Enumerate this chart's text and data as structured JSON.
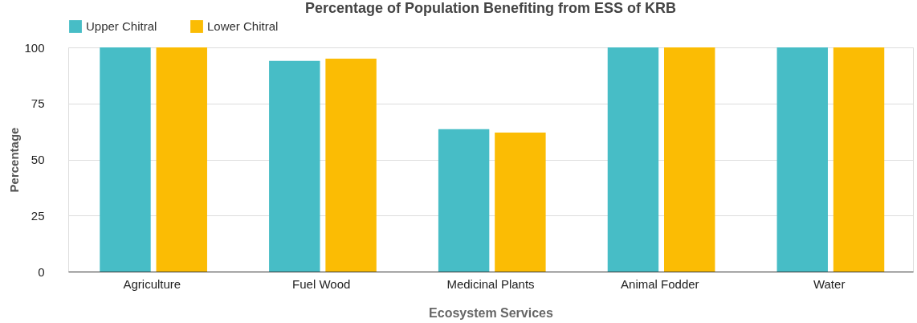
{
  "chart_data": {
    "type": "bar",
    "title": "Percentage of Population Benefiting from ESS of KRB",
    "xlabel": "Ecosystem Services",
    "ylabel": "Percentage",
    "categories": [
      "Agriculture",
      "Fuel Wood",
      "Medicinal Plants",
      "Animal Fodder",
      "Water"
    ],
    "series": [
      {
        "name": "Upper Chitral",
        "color": "#47bdc6",
        "values": [
          100,
          94,
          63.5,
          100,
          100
        ]
      },
      {
        "name": "Lower Chitral",
        "color": "#fbbc04",
        "values": [
          100,
          95,
          62,
          100,
          100
        ]
      }
    ],
    "ylim": [
      0,
      100
    ],
    "yticks": [
      0,
      25,
      50,
      75,
      100
    ],
    "grid": "y",
    "legend": "top"
  }
}
